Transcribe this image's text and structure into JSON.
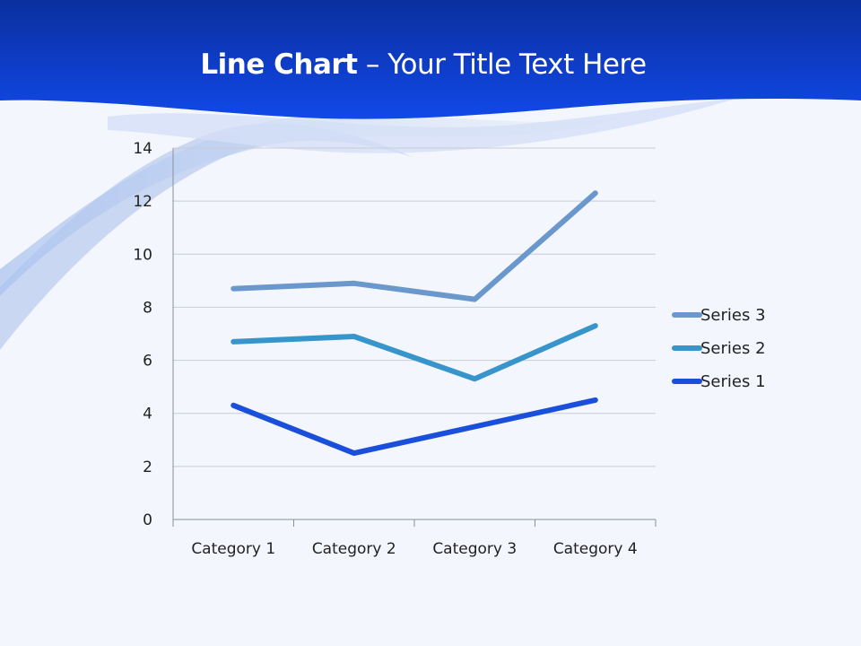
{
  "slide": {
    "title_bold": "Line Chart",
    "title_rest": " – Your Title Text Here"
  },
  "colors": {
    "banner_top": "#0a2f9e",
    "banner_bottom": "#1148e8",
    "background": "#f3f6fc",
    "gridline": "#c8ccd4",
    "axis": "#8a8f99"
  },
  "chart_data": {
    "type": "line",
    "title": "",
    "xlabel": "",
    "ylabel": "",
    "categories": [
      "Category 1",
      "Category 2",
      "Category 3",
      "Category 4"
    ],
    "ylim": [
      0,
      14
    ],
    "yticks": [
      0,
      2,
      4,
      6,
      8,
      10,
      12,
      14
    ],
    "grid": true,
    "legend_position": "right",
    "series": [
      {
        "name": "Series 1",
        "values": [
          4.3,
          2.5,
          3.5,
          4.5
        ],
        "color": "#1a4fdc"
      },
      {
        "name": "Series 2",
        "values": [
          6.7,
          6.9,
          5.3,
          7.3
        ],
        "color": "#3895cc"
      },
      {
        "name": "Series 3",
        "values": [
          8.7,
          8.9,
          8.3,
          12.3
        ],
        "color": "#6a97cc"
      }
    ]
  }
}
